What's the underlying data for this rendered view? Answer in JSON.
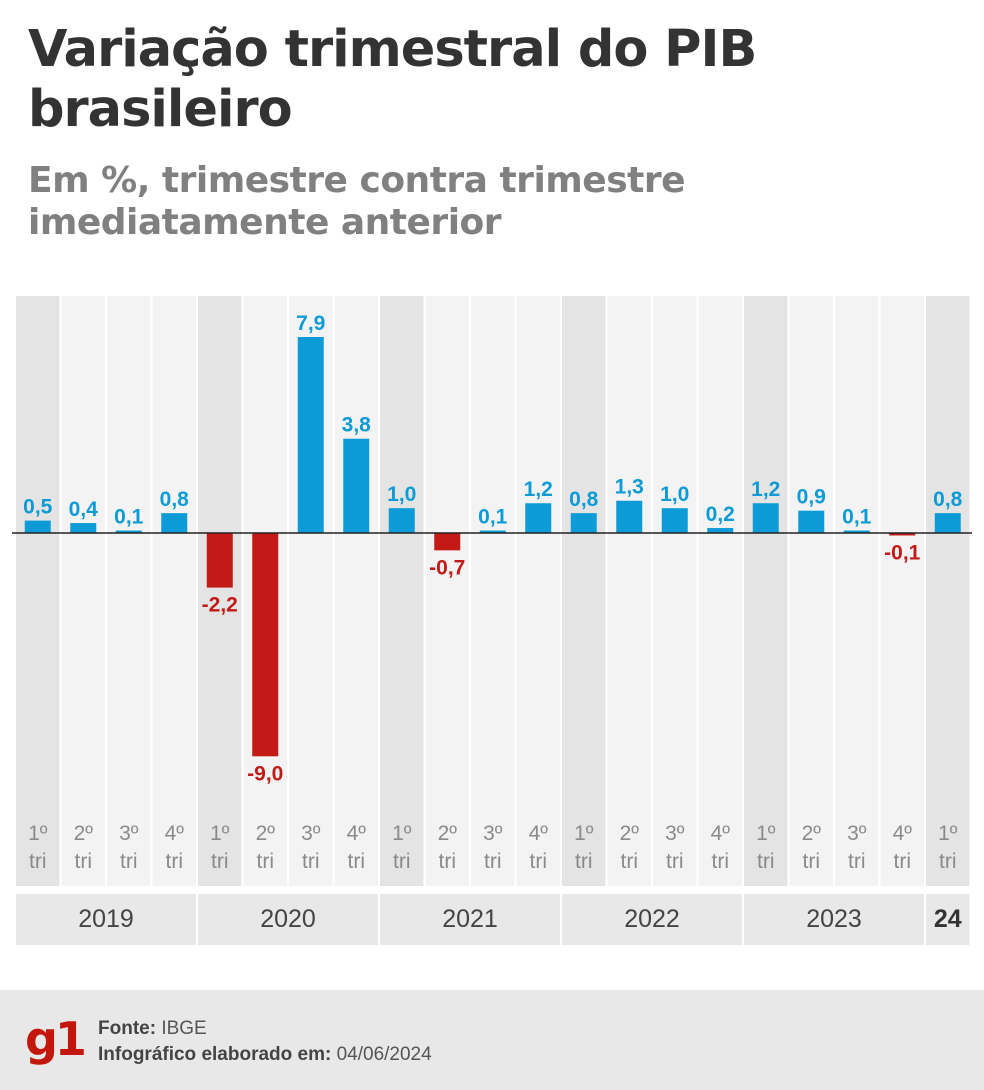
{
  "title": "Variação trimestral do PIB brasileiro",
  "subtitle": "Em %, trimestre contra trimestre imediatamente anterior",
  "chart_data": {
    "type": "bar",
    "title": "Variação trimestral do PIB brasileiro",
    "subtitle": "Em %, trimestre contra trimestre imediatamente anterior",
    "categories": [
      "1º tri",
      "2º tri",
      "3º tri",
      "4º tri",
      "1º tri",
      "2º tri",
      "3º tri",
      "4º tri",
      "1º tri",
      "2º tri",
      "3º tri",
      "4º tri",
      "1º tri",
      "2º tri",
      "3º tri",
      "4º tri",
      "1º tri",
      "2º tri",
      "3º tri",
      "4º tri",
      "1º tri"
    ],
    "quarter_labels": [
      "1º",
      "2º",
      "3º",
      "4º",
      "1º",
      "2º",
      "3º",
      "4º",
      "1º",
      "2º",
      "3º",
      "4º",
      "1º",
      "2º",
      "3º",
      "4º",
      "1º",
      "2º",
      "3º",
      "4º",
      "1º"
    ],
    "tri_label": "tri",
    "values": [
      0.5,
      0.4,
      0.1,
      0.8,
      -2.2,
      -9.0,
      7.9,
      3.8,
      1.0,
      -0.7,
      0.1,
      1.2,
      0.8,
      1.3,
      1.0,
      0.2,
      1.2,
      0.9,
      0.1,
      -0.1,
      0.8
    ],
    "value_labels": [
      "0,5",
      "0,4",
      "0,1",
      "0,8",
      "-2,2",
      "-9,0",
      "7,9",
      "3,8",
      "1,0",
      "-0,7",
      "0,1",
      "1,2",
      "0,8",
      "1,3",
      "1,0",
      "0,2",
      "1,2",
      "0,9",
      "0,1",
      "-0,1",
      "0,8"
    ],
    "years": [
      {
        "label": "2019",
        "start": 0,
        "count": 4
      },
      {
        "label": "2020",
        "start": 4,
        "count": 4
      },
      {
        "label": "2021",
        "start": 8,
        "count": 4
      },
      {
        "label": "2022",
        "start": 12,
        "count": 4
      },
      {
        "label": "2023",
        "start": 16,
        "count": 4
      },
      {
        "label": "24",
        "start": 20,
        "count": 1
      }
    ],
    "ylim": [
      -9.0,
      7.9
    ],
    "colors": {
      "positive": "#0c9bd6",
      "negative": "#c41a17",
      "shade_dark": "#e4e4e4",
      "shade_light": "#f3f3f3"
    }
  },
  "footer": {
    "logo": "g1",
    "source_label": "Fonte:",
    "source_value": "IBGE",
    "made_label": "Infográfico elaborado em:",
    "made_value": "04/06/2024"
  }
}
